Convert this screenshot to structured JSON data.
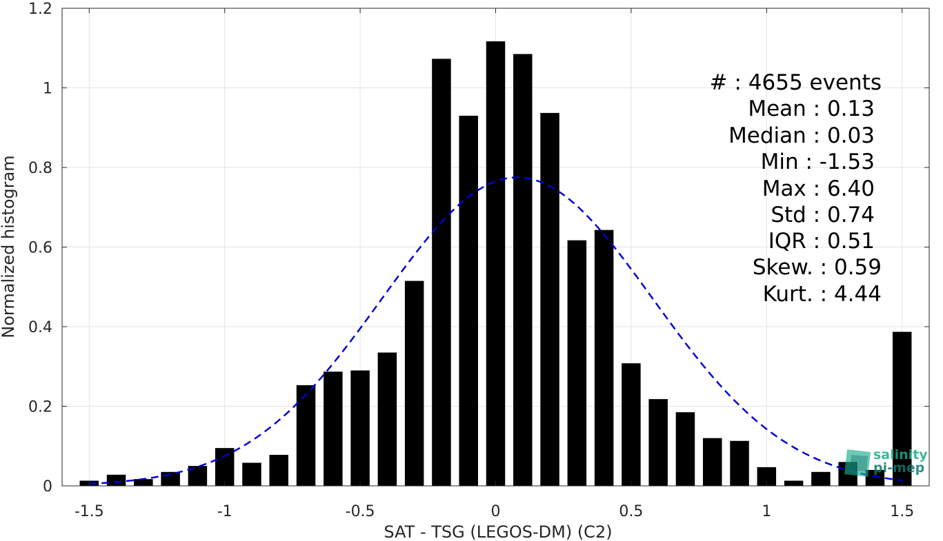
{
  "chart_data": {
    "type": "bar",
    "xlabel": "SAT - TSG (LEGOS-DM) (C2)",
    "ylabel": "Normalized histogram",
    "xlim": [
      -1.6,
      1.6
    ],
    "ylim": [
      0,
      1.2
    ],
    "grid": true,
    "bar_width": 0.07,
    "x_ticks": [
      -1.5,
      -1,
      -0.5,
      0,
      0.5,
      1,
      1.5
    ],
    "x_tick_labels": [
      "-1.5",
      "-1",
      "-0.5",
      "0",
      "0.5",
      "1",
      "1.5"
    ],
    "y_ticks": [
      0,
      0.2,
      0.4,
      0.6,
      0.8,
      1,
      1.2
    ],
    "y_tick_labels": [
      "0",
      "0.2",
      "0.4",
      "0.6",
      "0.8",
      "1",
      "1.2"
    ],
    "x": [
      -1.5,
      -1.4,
      -1.3,
      -1.2,
      -1.1,
      -1.0,
      -0.9,
      -0.8,
      -0.7,
      -0.6,
      -0.5,
      -0.4,
      -0.3,
      -0.2,
      -0.1,
      0.0,
      0.1,
      0.2,
      0.3,
      0.4,
      0.5,
      0.6,
      0.7,
      0.8,
      0.9,
      1.0,
      1.1,
      1.2,
      1.3,
      1.4,
      1.5
    ],
    "values": [
      0.013,
      0.028,
      0.017,
      0.035,
      0.05,
      0.095,
      0.058,
      0.078,
      0.253,
      0.287,
      0.29,
      0.335,
      0.515,
      1.073,
      0.93,
      1.117,
      1.085,
      0.937,
      0.617,
      0.643,
      0.308,
      0.218,
      0.185,
      0.12,
      0.113,
      0.047,
      0.013,
      0.035,
      0.06,
      0.04,
      0.387
    ],
    "fit_curve": {
      "type": "gaussian",
      "peak": 0.775,
      "center": 0.08,
      "sigma": 0.5,
      "x_range": [
        -1.5,
        1.5
      ],
      "color": "#0000d8",
      "style": "dashed"
    },
    "bar_color": "#000000"
  },
  "stats": [
    {
      "label": "#  : 4655 events"
    },
    {
      "label": "Mean : 0.13"
    },
    {
      "label": "Median : 0.03"
    },
    {
      "label": "Min : -1.53"
    },
    {
      "label": "Max : 6.40"
    },
    {
      "label": "Std : 0.74"
    },
    {
      "label": "IQR : 0.51"
    },
    {
      "label": "Skew. : 0.59"
    },
    {
      "label": "Kurt. : 4.44"
    }
  ],
  "watermark": {
    "line1": "salinity",
    "line2": "pi-mep",
    "color": "#1aab8a",
    "color_dark": "#0e7a70"
  }
}
